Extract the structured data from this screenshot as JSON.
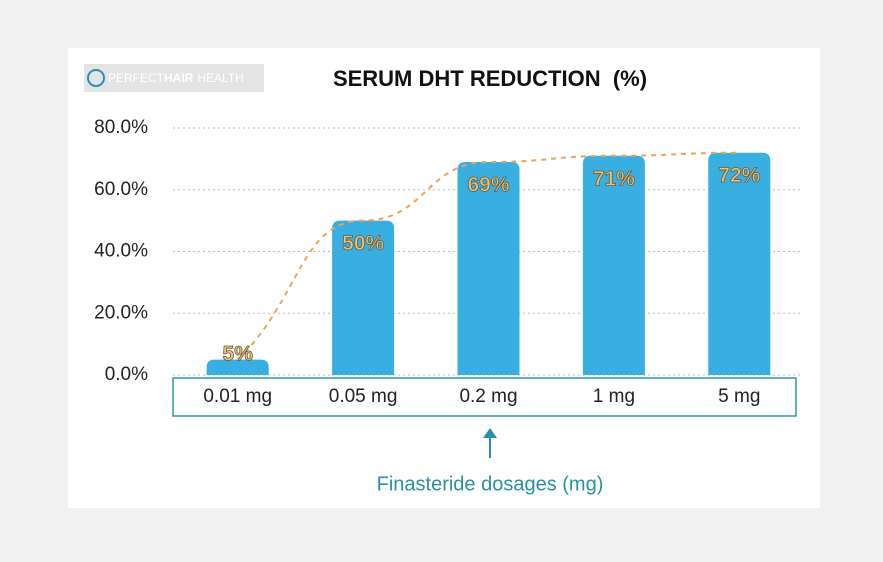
{
  "logo": [
    "PERFECT",
    "HAIR",
    "HEALTH"
  ],
  "chart_data": {
    "type": "bar",
    "title": "SERUM DHT REDUCTION  (%)",
    "categories": [
      "0.01 mg",
      "0.05 mg",
      "0.2 mg",
      "1 mg",
      "5 mg"
    ],
    "values": [
      5,
      50,
      69,
      71,
      72
    ],
    "value_labels": [
      "5%",
      "50%",
      "69%",
      "71%",
      "72%"
    ],
    "color": "#38afe0",
    "trend_color": "#e8a55a",
    "x_label": "Finasteride dosages (mg)",
    "ylim": [
      0,
      80
    ],
    "yticks": [
      {
        "value": 0,
        "label": "0.0%"
      },
      {
        "value": 20,
        "label": "20.0%"
      },
      {
        "value": 40,
        "label": "40.0%"
      },
      {
        "value": 60,
        "label": "60.0%"
      },
      {
        "value": 80,
        "label": "80.0%"
      }
    ],
    "grid": true
  }
}
